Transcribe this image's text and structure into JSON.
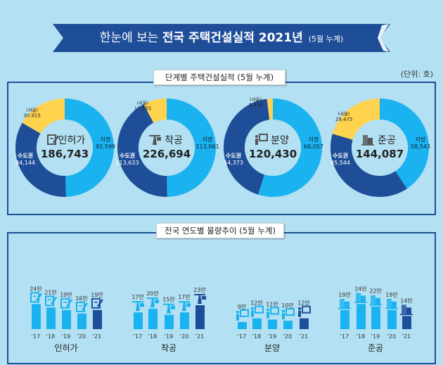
{
  "title": {
    "pre": "한눈에 보는",
    "bold": "전국 주택건설실적 2021년",
    "suffix": "(5월 누계)"
  },
  "section1": {
    "label": "단계별 주택건설실적 (5월 누계)",
    "unit": "(단위: 호)"
  },
  "section2": {
    "label": "전국 연도별 물량추이 (5월 누계)"
  },
  "colors": {
    "background": "#b3e0f2",
    "navy": "#1f4e99",
    "local": "#1ab3f0",
    "seoul": "#ffd34e"
  },
  "chart_data": [
    {
      "type": "pie",
      "style": "donut",
      "labels": {
        "local": "지방",
        "capital": "수도권",
        "seoul": "(서울)"
      },
      "items": [
        {
          "name": "인허가",
          "icon": "document-pen-icon",
          "total": "186,743",
          "local": "92,599",
          "capital": "94,144",
          "seoul": "30,915",
          "local_v": 92599,
          "capital_v": 94144,
          "seoul_v": 30915
        },
        {
          "name": "착공",
          "icon": "crane-icon",
          "total": "226,694",
          "local": "113,061",
          "capital": "113,633",
          "seoul": "17,555",
          "local_v": 113061,
          "capital_v": 113633,
          "seoul_v": 17555
        },
        {
          "name": "분양",
          "icon": "presentation-icon",
          "total": "120,430",
          "local": "66,057",
          "capital": "54,373",
          "seoul": "2,306",
          "local_v": 66057,
          "capital_v": 54373,
          "seoul_v": 2306
        },
        {
          "name": "준공",
          "icon": "building-icon",
          "total": "144,087",
          "local": "58,543",
          "capital": "85,544",
          "seoul": "29,475",
          "local_v": 58543,
          "capital_v": 85544,
          "seoul_v": 29475
        }
      ]
    },
    {
      "type": "bar",
      "categories": [
        "'17",
        "'18",
        "'19",
        "'20",
        "'21"
      ],
      "unit": "만",
      "groups": [
        {
          "name": "인허가",
          "icon": "document-pen-icon",
          "values": [
            24,
            21,
            19,
            16,
            19
          ]
        },
        {
          "name": "착공",
          "icon": "crane-icon",
          "values": [
            17,
            20,
            15,
            17,
            23
          ]
        },
        {
          "name": "분양",
          "icon": "presentation-icon",
          "values": [
            9,
            12,
            11,
            10,
            12
          ]
        },
        {
          "name": "준공",
          "icon": "building-icon",
          "values": [
            19,
            24,
            22,
            19,
            14
          ]
        }
      ]
    }
  ]
}
